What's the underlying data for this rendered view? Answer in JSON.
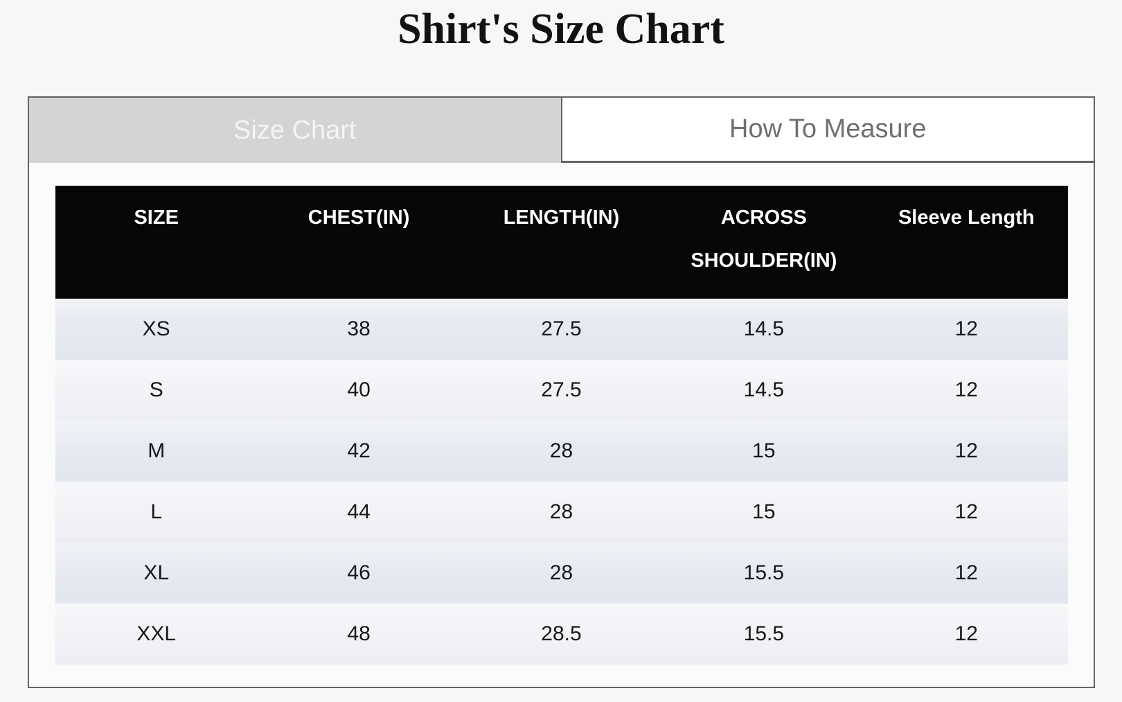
{
  "page": {
    "title": "Shirt's Size Chart"
  },
  "tabs": [
    {
      "label": "Size Chart",
      "active": true
    },
    {
      "label": "How To Measure",
      "active": false
    }
  ],
  "size_table": {
    "columns": [
      "SIZE",
      "CHEST(IN)",
      "LENGTH(IN)",
      "ACROSS SHOULDER(IN)",
      "Sleeve Length"
    ],
    "rows": [
      [
        "XS",
        "38",
        "27.5",
        "14.5",
        "12"
      ],
      [
        "S",
        "40",
        "27.5",
        "14.5",
        "12"
      ],
      [
        "M",
        "42",
        "28",
        "15",
        "12"
      ],
      [
        "L",
        "44",
        "28",
        "15",
        "12"
      ],
      [
        "XL",
        "46",
        "28",
        "15.5",
        "12"
      ],
      [
        "XXL",
        "48",
        "28.5",
        "15.5",
        "12"
      ]
    ]
  },
  "colors": {
    "page_bg": "#f7f7f7",
    "panel_bg": "#fbfbfb",
    "panel_border": "#636363",
    "active_tab_bg": "#d4d4d4",
    "active_tab_text": "#f4f4f4",
    "inactive_tab_bg": "#ffffff",
    "inactive_tab_text": "#6f6f6f",
    "header_bg": "#060606",
    "header_text": "#ffffff",
    "cell_text": "#17181c",
    "title_text": "#121212"
  }
}
